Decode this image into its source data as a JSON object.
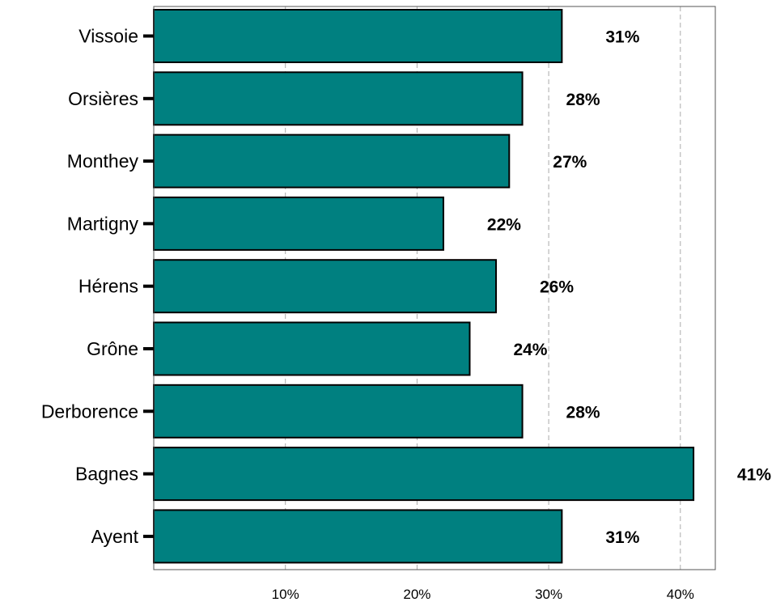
{
  "chart_data": {
    "type": "bar",
    "orientation": "horizontal",
    "categories": [
      "Vissoie",
      "Orsières",
      "Monthey",
      "Martigny",
      "Hérens",
      "Grône",
      "Derborence",
      "Bagnes",
      "Ayent"
    ],
    "values": [
      31,
      28,
      27,
      22,
      26,
      24,
      28,
      41,
      31
    ],
    "data_labels": [
      "31%",
      "28%",
      "27%",
      "22%",
      "26%",
      "24%",
      "28%",
      "41%",
      "31%"
    ],
    "x_ticks": [
      10,
      20,
      30,
      40
    ],
    "x_tick_labels": [
      "10%",
      "20%",
      "30%",
      "40%"
    ],
    "xlim": [
      0,
      42.9
    ],
    "grid": "vertical dashed",
    "title": "",
    "xlabel": "",
    "ylabel": "",
    "bar_color": "#008080",
    "bar_edge_color": "#000000"
  }
}
